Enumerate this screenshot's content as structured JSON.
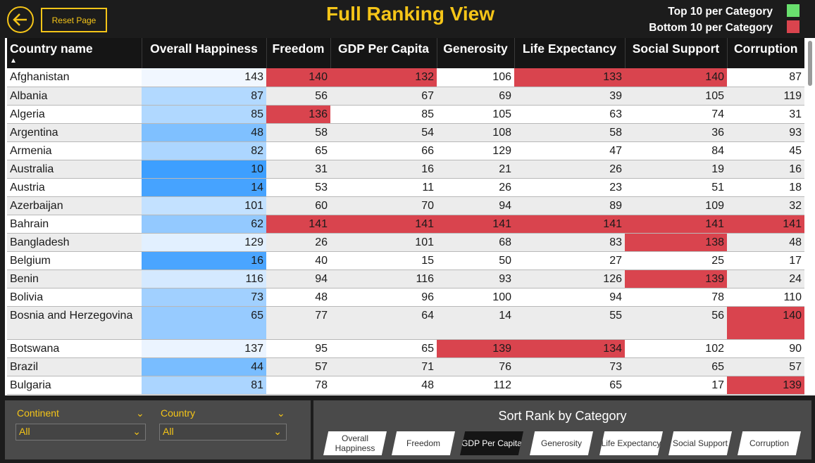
{
  "header": {
    "title": "Full Ranking View",
    "reset_label": "Reset Page",
    "legend_top": "Top 10 per Category",
    "legend_bottom": "Bottom 10 per Category",
    "colors": {
      "top": "#69e06e",
      "bottom": "#d9444e",
      "accent": "#f5c518"
    }
  },
  "table": {
    "columns": [
      "Country name",
      "Overall Happiness",
      "Freedom",
      "GDP Per Capita",
      "Generosity",
      "Life Expectancy",
      "Social Support",
      "Corruption"
    ],
    "sorted_column": "Country name",
    "rows": [
      {
        "country": "Afghanistan",
        "ranks": [
          143,
          140,
          132,
          106,
          133,
          140,
          87
        ]
      },
      {
        "country": "Albania",
        "ranks": [
          87,
          56,
          67,
          69,
          39,
          105,
          119
        ]
      },
      {
        "country": "Algeria",
        "ranks": [
          85,
          136,
          85,
          105,
          63,
          74,
          31
        ]
      },
      {
        "country": "Argentina",
        "ranks": [
          48,
          58,
          54,
          108,
          58,
          36,
          93
        ]
      },
      {
        "country": "Armenia",
        "ranks": [
          82,
          65,
          66,
          129,
          47,
          84,
          45
        ]
      },
      {
        "country": "Australia",
        "ranks": [
          10,
          31,
          16,
          21,
          26,
          19,
          16
        ]
      },
      {
        "country": "Austria",
        "ranks": [
          14,
          53,
          11,
          26,
          23,
          51,
          18
        ]
      },
      {
        "country": "Azerbaijan",
        "ranks": [
          101,
          60,
          70,
          94,
          89,
          109,
          32
        ]
      },
      {
        "country": "Bahrain",
        "ranks": [
          62,
          141,
          141,
          141,
          141,
          141,
          141
        ]
      },
      {
        "country": "Bangladesh",
        "ranks": [
          129,
          26,
          101,
          68,
          83,
          138,
          48
        ]
      },
      {
        "country": "Belgium",
        "ranks": [
          16,
          40,
          15,
          50,
          27,
          25,
          17
        ]
      },
      {
        "country": "Benin",
        "ranks": [
          116,
          94,
          116,
          93,
          126,
          139,
          24
        ]
      },
      {
        "country": "Bolivia",
        "ranks": [
          73,
          48,
          96,
          100,
          94,
          78,
          110
        ]
      },
      {
        "country": "Bosnia and Herzegovina",
        "ranks": [
          65,
          77,
          64,
          14,
          55,
          56,
          140
        ]
      },
      {
        "country": "Botswana",
        "ranks": [
          137,
          95,
          65,
          139,
          134,
          102,
          90
        ]
      },
      {
        "country": "Brazil",
        "ranks": [
          44,
          57,
          71,
          76,
          73,
          65,
          57
        ]
      },
      {
        "country": "Bulgaria",
        "ranks": [
          81,
          78,
          48,
          112,
          65,
          17,
          139
        ]
      }
    ]
  },
  "filters": {
    "continent": {
      "label": "Continent",
      "value": "All"
    },
    "country": {
      "label": "Country",
      "value": "All"
    }
  },
  "sort_panel": {
    "title": "Sort Rank by Category",
    "buttons": [
      "Overall Happiness",
      "Freedom",
      "GDP Per Capita",
      "Generosity",
      "Life Expectancy",
      "Social Support",
      "Corruption"
    ],
    "active": "GDP Per Capita"
  }
}
